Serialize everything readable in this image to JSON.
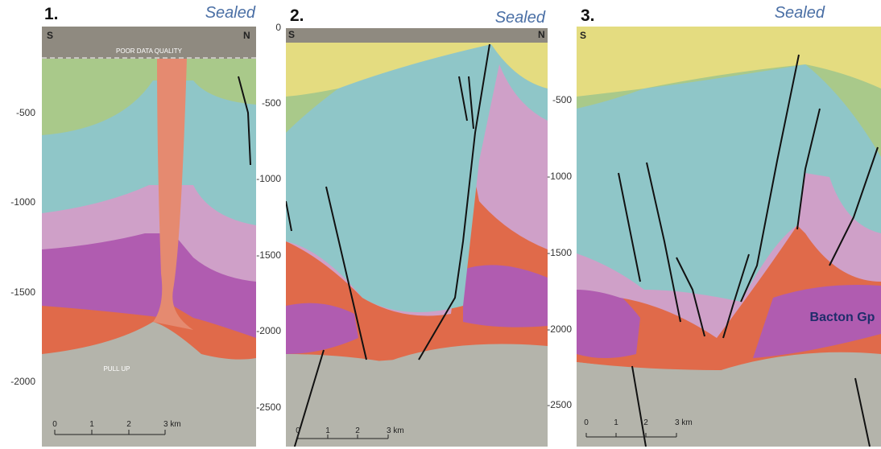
{
  "panels": [
    {
      "number": "1.",
      "status": "Sealed",
      "left_label": "S",
      "right_label": "N",
      "annotations": [
        "POOR DATA QUALITY",
        "PULL UP"
      ],
      "depth_ticks": [
        "-500",
        "-1000",
        "-1500",
        "-2000"
      ],
      "scale": [
        "0",
        "1",
        "2",
        "3 km"
      ]
    },
    {
      "number": "2.",
      "status": "Sealed",
      "left_label": "S",
      "right_label": "N",
      "depth_ticks": [
        "0",
        "-500",
        "-1000",
        "-1500",
        "-2000",
        "-2500"
      ],
      "scale": [
        "0",
        "1",
        "2",
        "3 km"
      ]
    },
    {
      "number": "3.",
      "status": "Sealed",
      "left_label": "S",
      "annotations": [
        "Bacton Gp"
      ],
      "depth_ticks": [
        "-500",
        "-1000",
        "-1500",
        "-2000",
        "-2500"
      ],
      "scale": [
        "0",
        "1",
        "2",
        "3 km"
      ]
    }
  ]
}
